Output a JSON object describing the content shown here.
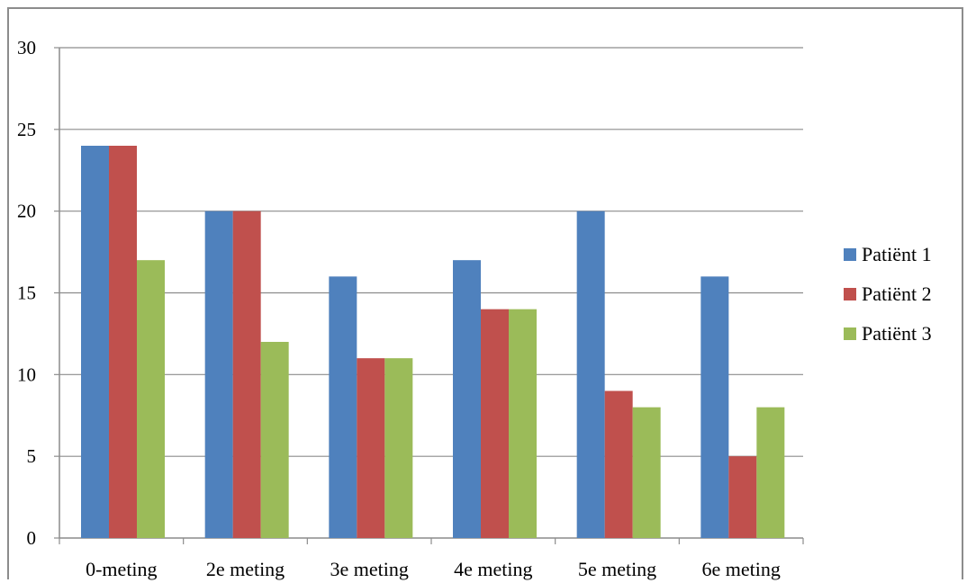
{
  "chart_data": {
    "type": "bar",
    "title": "",
    "xlabel": "",
    "ylabel": "",
    "ylim": [
      0,
      30
    ],
    "yticks": [
      0,
      5,
      10,
      15,
      20,
      25,
      30
    ],
    "grid": true,
    "legend_position": "right",
    "categories": [
      "0-meting",
      "2e meting",
      "3e meting",
      "4e meting",
      "5e meting",
      "6e meting"
    ],
    "series": [
      {
        "name": "Patiënt 1",
        "color": "#4f81bd",
        "values": [
          24,
          20,
          16,
          17,
          20,
          16
        ]
      },
      {
        "name": "Patiënt 2",
        "color": "#c0504d",
        "values": [
          24,
          20,
          11,
          14,
          9,
          5
        ]
      },
      {
        "name": "Patiënt 3",
        "color": "#9bbb59",
        "values": [
          17,
          12,
          11,
          14,
          8,
          8
        ]
      }
    ]
  }
}
